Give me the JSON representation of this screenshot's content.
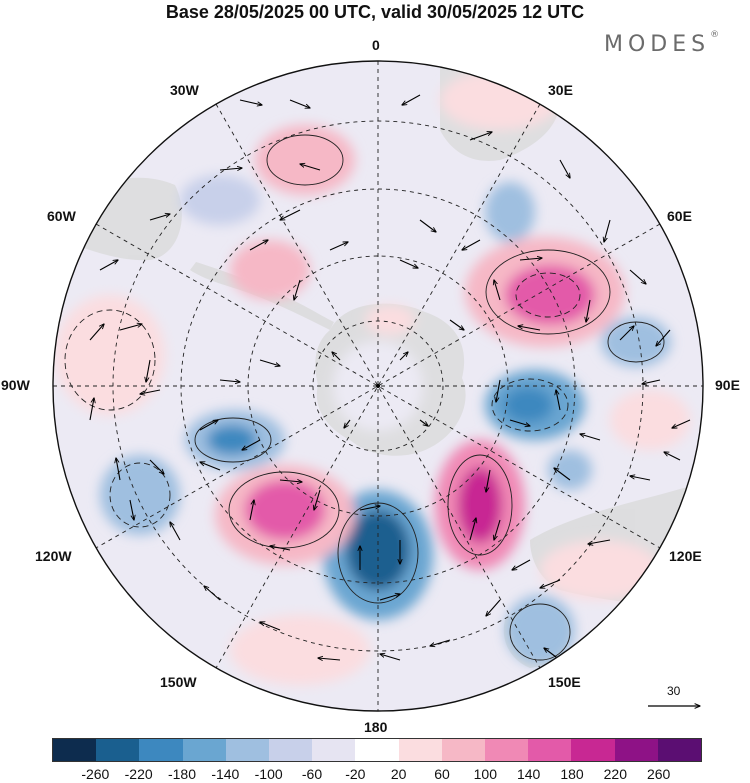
{
  "title": "Base 28/05/2025 00 UTC, valid 30/05/2025 12 UTC",
  "brand": "MODES",
  "brand_mark": "®",
  "longitude_labels": {
    "top": "0",
    "n30e": "30E",
    "n60e": "60E",
    "n90e": "90E",
    "n120e": "120E",
    "n150e": "150E",
    "bottom": "180",
    "n150w": "150W",
    "n120w": "120W",
    "n90w": "90W",
    "n60w": "60W",
    "n30w": "30W"
  },
  "reference_vector": "30",
  "colorbar": {
    "colors": [
      "#0d2c4e",
      "#1a5f8f",
      "#3d88bf",
      "#6aa6d1",
      "#9fbfe0",
      "#c8d0ea",
      "#e6e4f2",
      "#ffffff",
      "#fbdde0",
      "#f6b8c6",
      "#f089b5",
      "#e35aa9",
      "#c82893",
      "#8e1286",
      "#5b0e72"
    ],
    "ticks": [
      "-260",
      "-220",
      "-180",
      "-140",
      "-100",
      "-60",
      "-20",
      "20",
      "60",
      "100",
      "140",
      "180",
      "220",
      "260"
    ]
  },
  "projection": "south-polar-stereographic"
}
